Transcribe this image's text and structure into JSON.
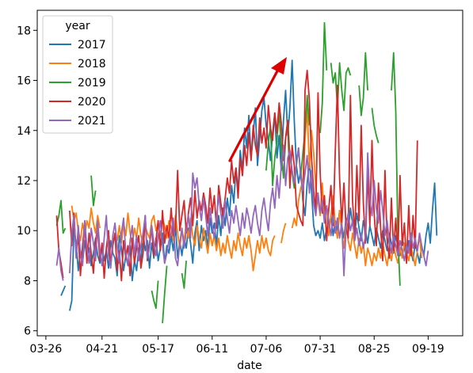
{
  "chart_data": {
    "type": "line",
    "xlabel": "date",
    "ylabel": "",
    "x_ticks": [
      "03-26",
      "04-21",
      "05-17",
      "06-11",
      "07-06",
      "07-31",
      "08-25",
      "09-19"
    ],
    "x_tick_days": [
      0,
      26,
      52,
      77,
      102,
      127,
      152,
      177
    ],
    "xlim": [
      -4,
      193
    ],
    "ylim": [
      5.8,
      18.8
    ],
    "y_ticks": [
      6,
      8,
      10,
      12,
      14,
      16,
      18
    ],
    "legend": {
      "title": "year",
      "placement": "upper-left"
    },
    "series": [
      {
        "name": "2017",
        "color": "#1f77b4",
        "values": [
          null,
          null,
          null,
          null,
          null,
          null,
          null,
          7.4,
          7.6,
          7.8,
          null,
          6.8,
          7.2,
          10.1,
          9.5,
          8.4,
          9.2,
          8.7,
          9.6,
          8.9,
          9.3,
          8.6,
          9.1,
          9.7,
          9.0,
          8.7,
          9.4,
          8.8,
          9.2,
          8.5,
          9.6,
          9.1,
          8.9,
          8.2,
          9.8,
          9.3,
          8.4,
          9.0,
          8.6,
          9.4,
          8.0,
          8.8,
          8.4,
          9.3,
          8.7,
          9.9,
          9.2,
          9.6,
          8.5,
          9.5,
          8.9,
          9.7,
          8.8,
          9.3,
          9.9,
          8.7,
          9.4,
          9.1,
          9.8,
          9.2,
          10.2,
          8.9,
          9.6,
          9.0,
          9.7,
          9.3,
          10.1,
          9.5,
          8.7,
          9.9,
          10.4,
          9.2,
          10.2,
          9.6,
          10.0,
          9.3,
          10.5,
          9.9,
          10.3,
          9.4,
          10.6,
          9.8,
          10.9,
          10.2,
          11.3,
          10.6,
          11.8,
          11.1,
          12.5,
          11.6,
          13.2,
          12.4,
          14.1,
          13.3,
          14.6,
          12.9,
          13.8,
          14.9,
          12.6,
          13.7,
          14.8,
          15.3,
          14.2,
          13.6,
          12.8,
          13.9,
          14.7,
          12.9,
          13.8,
          12.4,
          14.4,
          15.6,
          13.8,
          14.9,
          16.8,
          14.4,
          12.6,
          11.9,
          12.4,
          11.2,
          10.6,
          11.9,
          12.8,
          11.6,
          10.2,
          9.8,
          10.0,
          9.7,
          10.3,
          9.6,
          10.1,
          9.9,
          10.6,
          9.8,
          10.4,
          10.0,
          10.8,
          10.2,
          9.7,
          10.5,
          9.9,
          10.9,
          10.3,
          9.8,
          10.7,
          10.1,
          9.6,
          10.4,
          10.0,
          9.5,
          10.2,
          9.8,
          9.4,
          10.1,
          9.7,
          9.3,
          10.0,
          9.6,
          9.2,
          9.9,
          9.5,
          9.1,
          9.8,
          9.4,
          9.0,
          9.7,
          9.3,
          8.9,
          9.6,
          9.2,
          8.8,
          9.5,
          9.1,
          8.7,
          9.4,
          9.0,
          9.8,
          10.3,
          9.5,
          10.8,
          11.9,
          9.8,
          null
        ]
      },
      {
        "name": "2018",
        "color": "#ff7f0e",
        "values": [
          null,
          null,
          null,
          null,
          null,
          null,
          null,
          null,
          null,
          null,
          null,
          null,
          11.0,
          10.4,
          10.7,
          10.0,
          9.6,
          10.3,
          9.8,
          10.4,
          10.1,
          10.9,
          10.3,
          9.9,
          10.6,
          10.1,
          null,
          null,
          null,
          null,
          null,
          null,
          null,
          9.6,
          10.2,
          9.5,
          10.3,
          9.8,
          10.7,
          9.9,
          9.4,
          10.1,
          9.7,
          10.5,
          9.8,
          9.5,
          10.2,
          9.9,
          9.7,
          10.4,
          10.6,
          10.0,
          10.3,
          9.8,
          10.5,
          10.2,
          9.7,
          10.4,
          10.1,
          9.6,
          10.6,
          9.9,
          9.3,
          10.0,
          9.6,
          10.3,
          9.7,
          10.5,
          9.8,
          9.4,
          10.2,
          9.7,
          9.3,
          10.1,
          9.6,
          9.1,
          9.9,
          9.4,
          9.8,
          9.2,
          9.7,
          9.0,
          9.5,
          9.1,
          9.8,
          9.3,
          8.9,
          9.6,
          9.2,
          9.9,
          9.4,
          9.0,
          9.7,
          9.3,
          9.8,
          9.2,
          8.4,
          9.0,
          9.6,
          9.1,
          9.8,
          9.3,
          9.7,
          9.2,
          9.0,
          9.6,
          9.8,
          null,
          null,
          9.5,
          10.0,
          10.3,
          null,
          null,
          10.1,
          10.5,
          10.2,
          11.2,
          11.7,
          12.0,
          13.6,
          14.9,
          12.5,
          14.0,
          13.1,
          11.7,
          11.2,
          10.6,
          11.9,
          10.4,
          10.9,
          9.8,
          10.6,
          11.4,
          10.2,
          9.7,
          10.8,
          9.9,
          9.3,
          10.4,
          9.6,
          9.2,
          9.9,
          9.4,
          8.9,
          9.7,
          9.1,
          9.5,
          8.6,
          9.3,
          9.0,
          8.6,
          9.1,
          8.8,
          9.3,
          8.9,
          9.5,
          9.0,
          8.6,
          9.2,
          8.8,
          9.4,
          9.0,
          8.7,
          9.3,
          8.9,
          9.5,
          9.1,
          8.8,
          9.4,
          9.0,
          8.6,
          9.2,
          9.8,
          8.9,
          null,
          null
        ]
      },
      {
        "name": "2019",
        "color": "#2ca02c",
        "values": [
          null,
          null,
          null,
          null,
          null,
          10.2,
          10.6,
          11.2,
          9.9,
          10.1,
          null,
          null,
          null,
          null,
          null,
          null,
          null,
          null,
          null,
          null,
          null,
          12.2,
          11.0,
          11.6,
          null,
          null,
          null,
          null,
          null,
          null,
          null,
          null,
          null,
          null,
          null,
          null,
          null,
          null,
          null,
          null,
          null,
          null,
          null,
          null,
          null,
          null,
          null,
          null,
          null,
          7.6,
          7.2,
          6.9,
          8.0,
          null,
          6.3,
          7.5,
          8.6,
          null,
          null,
          null,
          null,
          null,
          null,
          8.3,
          7.7,
          8.8,
          null,
          null,
          null,
          null,
          null,
          null,
          null,
          null,
          null,
          null,
          null,
          null,
          null,
          null,
          null,
          null,
          null,
          null,
          null,
          null,
          null,
          null,
          null,
          null,
          null,
          null,
          null,
          null,
          null,
          null,
          null,
          null,
          null,
          null,
          null,
          null,
          12.4,
          13.5,
          14.2,
          11.8,
          12.9,
          13.6,
          14.8,
          13.2,
          12.1,
          13.7,
          14.4,
          13.0,
          12.3,
          11.7,
          12.6,
          13.3,
          12.2,
          13.1,
          14.0,
          15.4,
          14.2,
          null,
          null,
          null,
          null,
          13.9,
          15.1,
          18.3,
          16.4,
          null,
          16.7,
          15.9,
          16.3,
          14.9,
          16.7,
          15.6,
          14.8,
          16.3,
          16.5,
          16.2,
          null,
          null,
          null,
          15.8,
          14.6,
          15.3,
          17.1,
          15.6,
          null,
          14.9,
          14.2,
          13.8,
          13.5,
          null,
          null,
          null,
          null,
          null,
          15.6,
          17.1,
          14.8,
          9.8,
          7.8,
          null,
          null,
          null,
          null,
          null,
          null,
          null,
          null
        ]
      },
      {
        "name": "2020",
        "color": "#d62728",
        "values": [
          null,
          null,
          null,
          null,
          null,
          10.6,
          9.2,
          8.7,
          8.1,
          null,
          null,
          10.8,
          9.4,
          10.7,
          9.1,
          9.8,
          8.2,
          9.4,
          10.3,
          8.7,
          9.9,
          9.1,
          8.3,
          9.6,
          10.1,
          8.8,
          9.5,
          8.1,
          9.3,
          10.0,
          8.6,
          9.4,
          9.9,
          8.4,
          9.2,
          8.0,
          9.6,
          8.9,
          9.4,
          8.2,
          9.7,
          8.7,
          9.3,
          9.8,
          8.5,
          9.1,
          10.6,
          8.8,
          9.5,
          10.1,
          9.0,
          9.6,
          10.4,
          9.2,
          10.8,
          9.5,
          10.2,
          9.7,
          10.9,
          9.8,
          10.1,
          12.4,
          10.0,
          10.6,
          11.2,
          9.9,
          10.7,
          11.3,
          10.2,
          11.6,
          10.5,
          11.2,
          10.8,
          11.5,
          11.0,
          10.3,
          11.7,
          10.7,
          11.4,
          10.1,
          11.8,
          11.1,
          10.6,
          11.3,
          12.1,
          11.5,
          12.8,
          11.9,
          12.5,
          11.3,
          12.9,
          12.2,
          13.4,
          12.6,
          13.9,
          12.8,
          14.2,
          13.4,
          13.0,
          14.5,
          13.5,
          14.1,
          13.3,
          15.0,
          14.1,
          13.6,
          14.7,
          13.9,
          15.1,
          14.3,
          12.8,
          13.7,
          14.4,
          11.7,
          13.4,
          12.6,
          11.0,
          10.7,
          10.4,
          10.2,
          15.6,
          16.4,
          15.2,
          12.9,
          11.6,
          10.8,
          15.5,
          12.3,
          10.7,
          11.4,
          9.6,
          10.9,
          11.8,
          10.2,
          13.2,
          15.8,
          12.1,
          10.3,
          11.9,
          10.1,
          9.7,
          15.4,
          11.2,
          9.8,
          12.6,
          10.4,
          14.2,
          11.1,
          9.5,
          12.3,
          10.2,
          13.6,
          10.7,
          9.4,
          11.9,
          10.1,
          8.8,
          12.4,
          9.6,
          8.9,
          11.3,
          9.2,
          10.5,
          9.0,
          12.2,
          9.4,
          10.3,
          8.7,
          11.0,
          9.0,
          10.6,
          9.3,
          13.6,
          null,
          null,
          null,
          null,
          null,
          null
        ]
      },
      {
        "name": "2021",
        "color": "#9467bd",
        "values": [
          null,
          null,
          null,
          null,
          null,
          8.6,
          9.3,
          8.4,
          8.0,
          null,
          null,
          8.3,
          9.9,
          10.6,
          8.9,
          10.2,
          9.1,
          8.6,
          10.4,
          9.3,
          8.7,
          10.1,
          9.5,
          8.8,
          10.4,
          9.2,
          8.6,
          9.7,
          10.6,
          9.0,
          8.5,
          9.8,
          10.3,
          9.4,
          8.7,
          9.9,
          10.5,
          9.1,
          8.6,
          9.6,
          10.2,
          9.0,
          9.8,
          8.8,
          9.4,
          9.9,
          10.6,
          8.9,
          9.3,
          10.2,
          9.5,
          9.0,
          9.8,
          10.4,
          9.4,
          8.7,
          9.1,
          9.6,
          9.9,
          10.5,
          8.9,
          8.6,
          9.5,
          10.1,
          9.3,
          10.0,
          10.6,
          9.7,
          12.3,
          11.7,
          12.1,
          11.0,
          10.4,
          11.3,
          10.6,
          9.8,
          10.9,
          10.2,
          9.7,
          10.5,
          11.4,
          10.7,
          10.1,
          11.2,
          10.5,
          9.9,
          10.8,
          10.3,
          11.0,
          10.4,
          9.8,
          10.7,
          10.1,
          10.9,
          10.5,
          9.9,
          10.6,
          11.0,
          10.3,
          9.8,
          10.8,
          11.3,
          10.6,
          10.0,
          11.1,
          11.7,
          10.9,
          12.2,
          11.3,
          12.6,
          13.4,
          11.8,
          12.9,
          13.2,
          12.4,
          11.9,
          12.7,
          13.3,
          12.1,
          11.6,
          12.3,
          13.0,
          11.5,
          12.4,
          11.1,
          10.6,
          11.5,
          10.7,
          11.2,
          10.3,
          11.0,
          10.4,
          9.8,
          10.6,
          9.9,
          10.5,
          9.7,
          10.3,
          8.2,
          10.2,
          10.7,
          10.0,
          10.4,
          9.6,
          10.1,
          9.4,
          9.9,
          9.3,
          9.8,
          13.1,
          11.2,
          10.6,
          12.0,
          10.9,
          10.3,
          11.6,
          10.8,
          9.8,
          10.4,
          9.6,
          9.1,
          9.8,
          9.4,
          9.0,
          9.6,
          9.2,
          8.8,
          9.4,
          9.1,
          9.9,
          9.3,
          9.7,
          9.2,
          9.9,
          9.4,
          9.0,
          8.6,
          9.2,
          null,
          null,
          null,
          null,
          null,
          null,
          null
        ]
      }
    ]
  }
}
